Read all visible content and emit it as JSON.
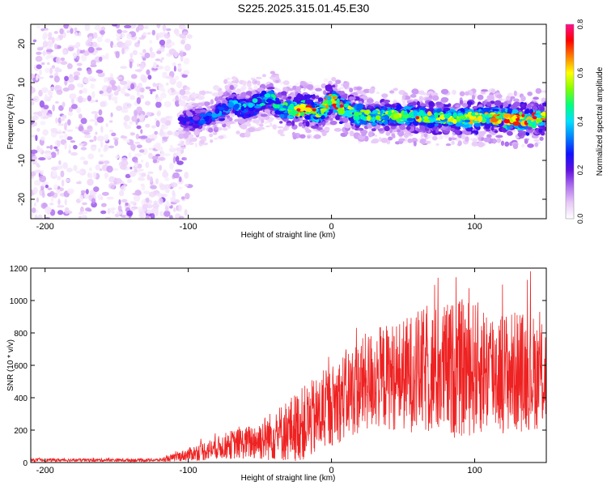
{
  "title": "S225.2025.315.01.45.E30",
  "chart_data": [
    {
      "type": "heatmap",
      "xlabel": "Height of straight line (km)",
      "ylabel": "Frequency (Hz)",
      "xlim": [
        -210,
        150
      ],
      "ylim": [
        -25,
        25
      ],
      "xticks": [
        -200,
        -100,
        0,
        100
      ],
      "yticks": [
        -20,
        -10,
        0,
        10,
        20
      ],
      "colorbar": {
        "label": "Normalized spectral amplitude",
        "range": [
          0.0,
          0.8
        ],
        "ticks": [
          "0.0",
          "0.2",
          "0.4",
          "0.6",
          "0.8"
        ],
        "colors": [
          "#ffffff",
          "#e8c8f8",
          "#b070f0",
          "#6010e0",
          "#1010ff",
          "#0080ff",
          "#00e0ff",
          "#00ff80",
          "#80ff00",
          "#ffff00",
          "#ff8000",
          "#ff0000",
          "#ff1090"
        ]
      },
      "noise_region_x": [
        -210,
        -105
      ],
      "ridge": {
        "x": [
          -105,
          -95,
          -85,
          -75,
          -70,
          -60,
          -50,
          -42,
          -35,
          -25,
          -15,
          -8,
          0,
          5,
          15,
          30,
          50,
          70,
          90,
          110,
          130,
          150
        ],
        "freq": [
          0,
          0.5,
          1,
          3,
          5,
          3,
          5,
          6,
          3.5,
          3,
          3,
          2,
          6,
          4,
          2,
          1.5,
          1.5,
          1,
          1,
          1,
          0.5,
          1
        ],
        "amplitude": [
          0.25,
          0.3,
          0.3,
          0.35,
          0.35,
          0.4,
          0.4,
          0.45,
          0.45,
          0.6,
          0.65,
          0.55,
          0.6,
          0.7,
          0.55,
          0.5,
          0.55,
          0.55,
          0.55,
          0.6,
          0.7,
          0.6
        ]
      }
    },
    {
      "type": "line",
      "xlabel": "Height of straight line (km)",
      "ylabel": "SNR (10 * v/v)",
      "xlim": [
        -210,
        150
      ],
      "ylim": [
        0,
        1200
      ],
      "xticks": [
        -200,
        -100,
        0,
        100
      ],
      "yticks": [
        0,
        200,
        400,
        600,
        800,
        1000,
        1200
      ],
      "series": [
        {
          "name": "SNR",
          "color": "#ee2222",
          "envelope": {
            "x": [
              -210,
              -180,
              -120,
              -110,
              -100,
              -90,
              -80,
              -70,
              -60,
              -50,
              -40,
              -30,
              -20,
              -10,
              0,
              10,
              20,
              30,
              40,
              50,
              60,
              70,
              80,
              90,
              100,
              110,
              120,
              130,
              140,
              150
            ],
            "mid": [
              15,
              15,
              15,
              30,
              50,
              70,
              90,
              110,
              120,
              140,
              170,
              200,
              240,
              280,
              350,
              420,
              470,
              520,
              530,
              540,
              560,
              560,
              570,
              580,
              580,
              580,
              560,
              560,
              560,
              540
            ],
            "amp": [
              10,
              10,
              10,
              25,
              40,
              60,
              70,
              90,
              100,
              130,
              160,
              200,
              230,
              250,
              250,
              280,
              300,
              320,
              330,
              350,
              380,
              400,
              420,
              430,
              420,
              400,
              380,
              380,
              360,
              340
            ]
          }
        }
      ]
    }
  ]
}
